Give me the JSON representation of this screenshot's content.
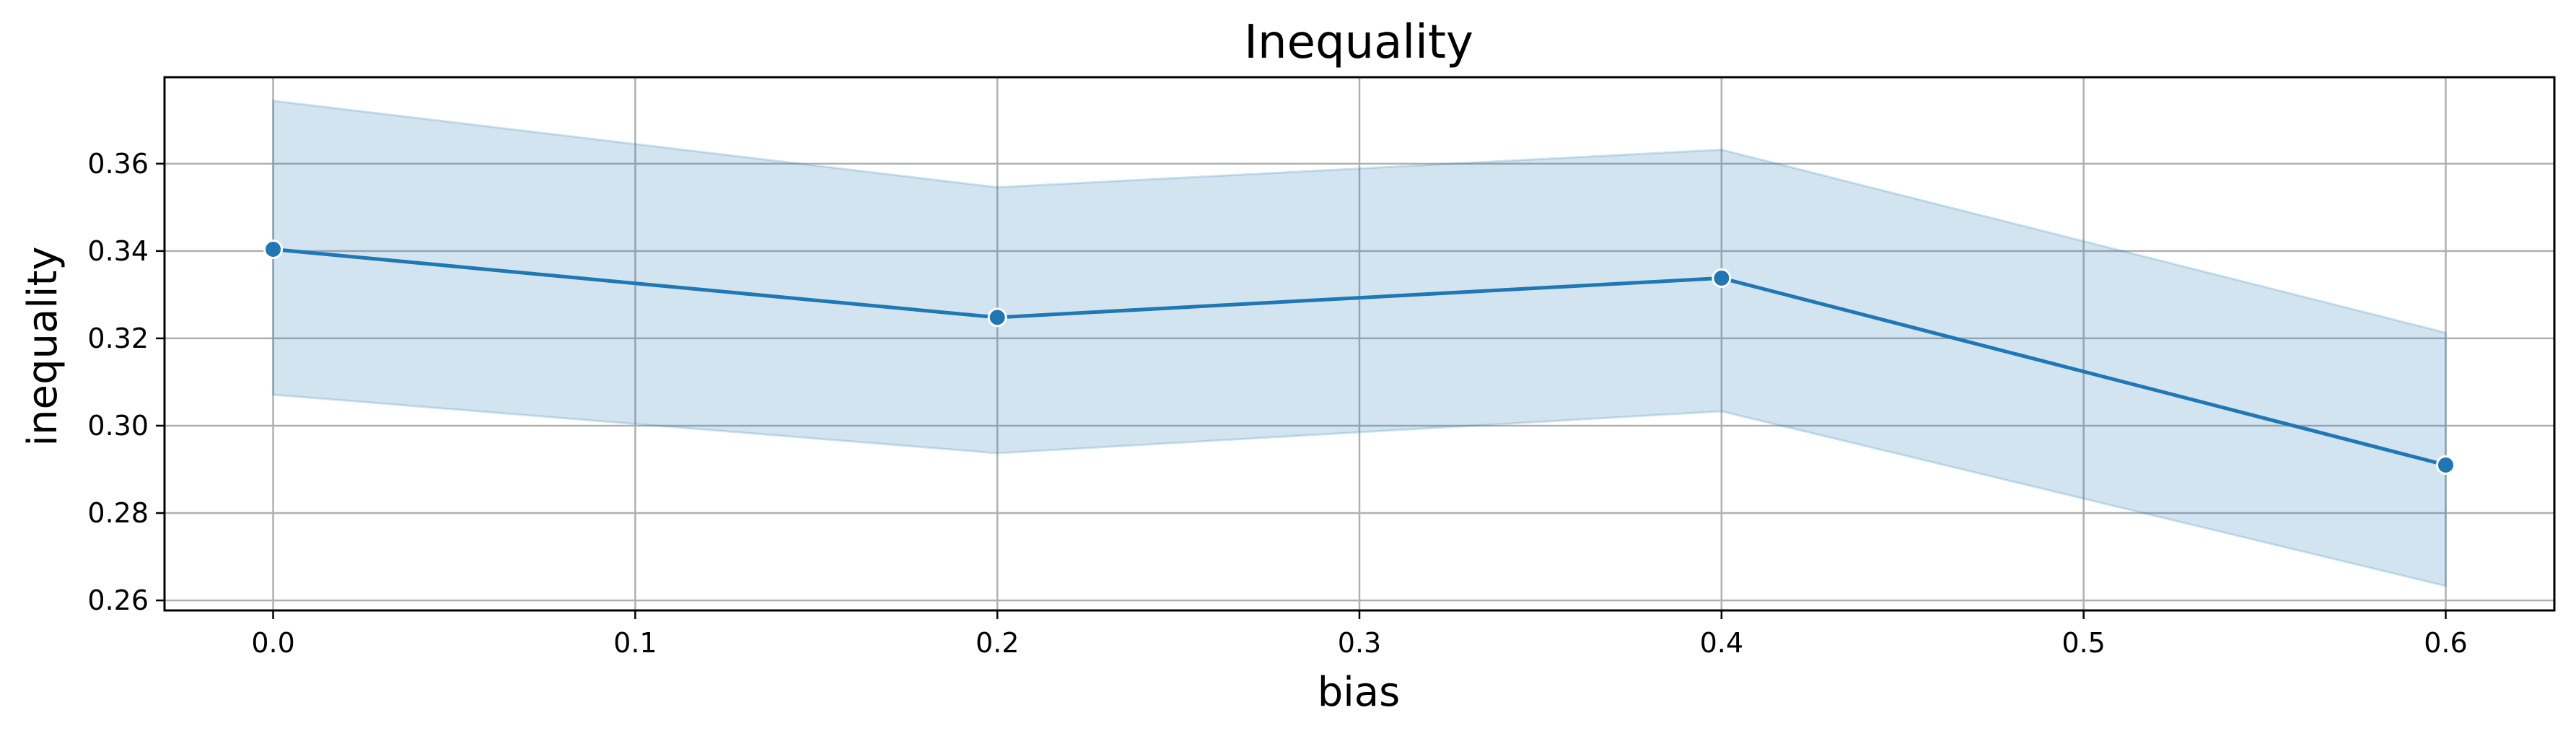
{
  "chart_data": {
    "type": "line",
    "title": "Inequality",
    "xlabel": "bias",
    "ylabel": "inequality",
    "xlim": [
      -0.03,
      0.63
    ],
    "ylim": [
      0.2577,
      0.3798
    ],
    "x_ticks": [
      0.0,
      0.1,
      0.2,
      0.3,
      0.4,
      0.5,
      0.6
    ],
    "x_tick_labels": [
      "0.0",
      "0.1",
      "0.2",
      "0.3",
      "0.4",
      "0.5",
      "0.6"
    ],
    "y_ticks": [
      0.26,
      0.28,
      0.3,
      0.32,
      0.34,
      0.36
    ],
    "y_tick_labels": [
      "0.26",
      "0.28",
      "0.30",
      "0.32",
      "0.34",
      "0.36"
    ],
    "grid": true,
    "legend": "none",
    "series": [
      {
        "x": [
          0.0,
          0.2,
          0.4,
          0.6
        ],
        "y": [
          0.3404,
          0.3248,
          0.3338,
          0.291
        ],
        "ci_lower": [
          0.3071,
          0.2937,
          0.3033,
          0.2633
        ],
        "ci_upper": [
          0.3744,
          0.3546,
          0.3632,
          0.3213
        ],
        "color": "#1f77b4",
        "band_color": "#1f77b4",
        "marker": "circle"
      }
    ]
  }
}
